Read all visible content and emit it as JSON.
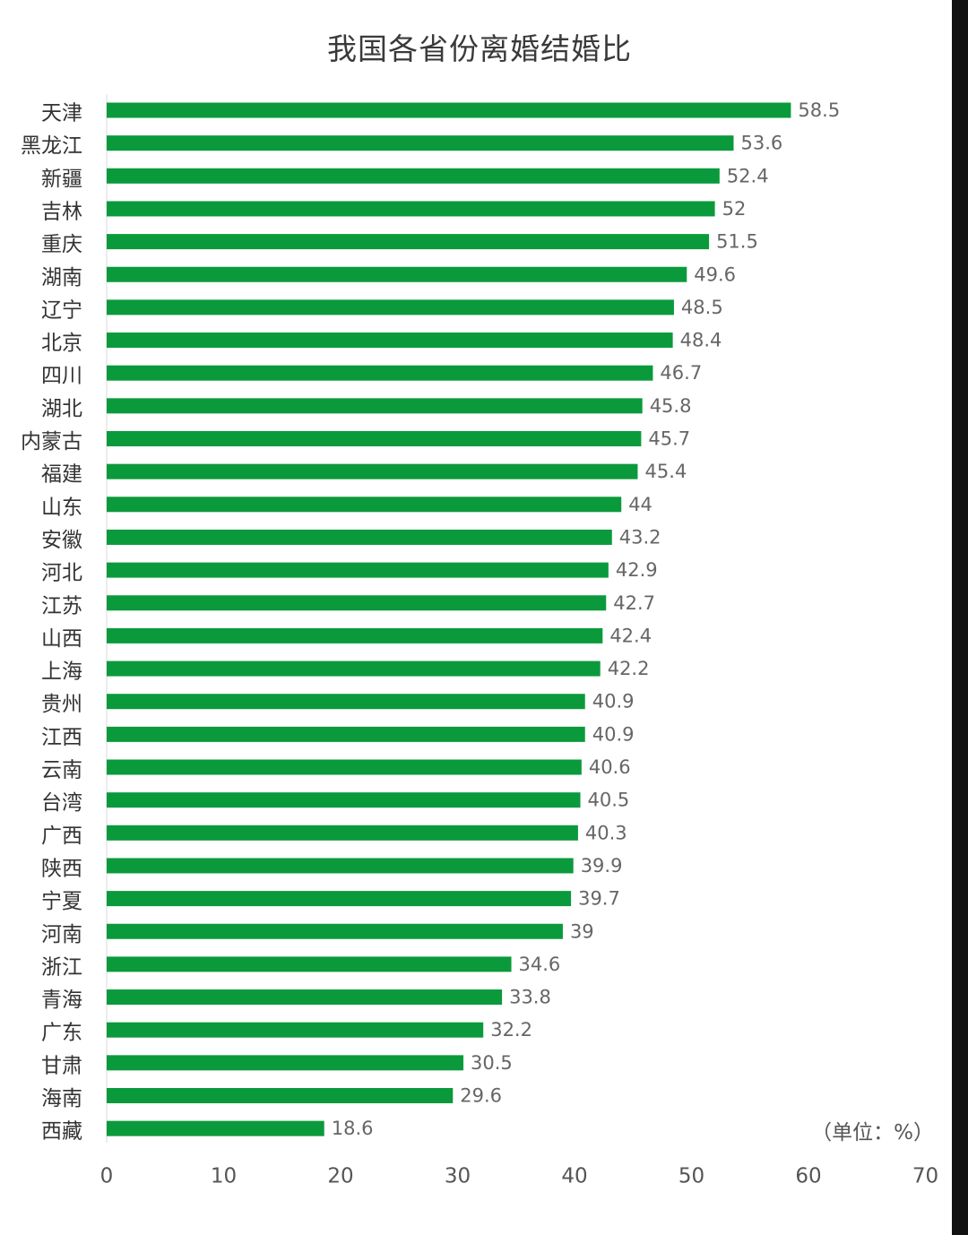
{
  "chart_data": {
    "type": "bar",
    "orientation": "horizontal",
    "title": "我国各省份离婚结婚比",
    "unit_note": "（单位：%）",
    "bar_color": "#0a9a3c",
    "xlim": [
      0,
      70
    ],
    "xticks": [
      0,
      10,
      20,
      30,
      40,
      50,
      60,
      70
    ],
    "grid": false,
    "categories": [
      "天津",
      "黑龙江",
      "新疆",
      "吉林",
      "重庆",
      "湖南",
      "辽宁",
      "北京",
      "四川",
      "湖北",
      "内蒙古",
      "福建",
      "山东",
      "安徽",
      "河北",
      "江苏",
      "山西",
      "上海",
      "贵州",
      "江西",
      "云南",
      "台湾",
      "广西",
      "陕西",
      "宁夏",
      "河南",
      "浙江",
      "青海",
      "广东",
      "甘肃",
      "海南",
      "西藏"
    ],
    "values": [
      58.5,
      53.6,
      52.4,
      52,
      51.5,
      49.6,
      48.5,
      48.4,
      46.7,
      45.8,
      45.7,
      45.4,
      44,
      43.2,
      42.9,
      42.7,
      42.4,
      42.2,
      40.9,
      40.9,
      40.6,
      40.5,
      40.3,
      39.9,
      39.7,
      39,
      34.6,
      33.8,
      32.2,
      30.5,
      29.6,
      18.6
    ]
  }
}
